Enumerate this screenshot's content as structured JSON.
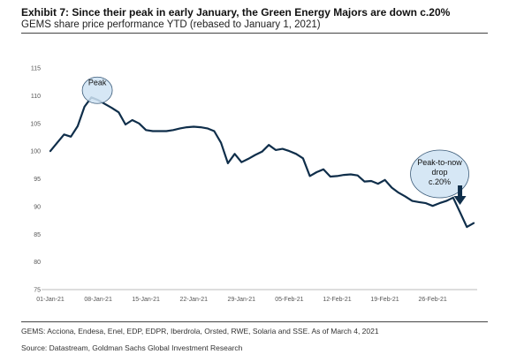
{
  "header": {
    "title": "Exhibit 7: Since their peak in early January, the Green Energy Majors are down c.20%",
    "subtitle": "GEMS share price performance YTD (rebased to January 1, 2021)"
  },
  "footer": {
    "note": "GEMS: Acciona, Endesa, Enel, EDP, EDPR, Iberdrola, Orsted, RWE, Solaria and SSE. As of March 4, 2021",
    "source": "Source: Datastream, Goldman Sachs Global Investment Research"
  },
  "colors": {
    "line": "#0f2e4a",
    "bubble_fill": "#cfe3f3",
    "bubble_stroke": "#3a5a78",
    "arrow": "#0f2e4a"
  },
  "chart_data": {
    "type": "line",
    "title": "",
    "xlabel": "",
    "ylabel": "",
    "ylim": [
      75,
      115
    ],
    "yticks": [
      75,
      80,
      85,
      90,
      95,
      100,
      105,
      110,
      115
    ],
    "grid": false,
    "legend": "none",
    "xtick_labels": [
      "01-Jan-21",
      "08-Jan-21",
      "15-Jan-21",
      "22-Jan-21",
      "29-Jan-21",
      "05-Feb-21",
      "12-Feb-21",
      "19-Feb-21",
      "26-Feb-21"
    ],
    "x_start": "2021-01-01",
    "x_end": "2021-03-04",
    "series": [
      {
        "x": [
          "2021-01-01",
          "2021-01-02",
          "2021-01-03",
          "2021-01-04",
          "2021-01-05",
          "2021-01-06",
          "2021-01-07",
          "2021-01-08",
          "2021-01-09",
          "2021-01-10",
          "2021-01-11",
          "2021-01-12",
          "2021-01-13",
          "2021-01-14",
          "2021-01-15",
          "2021-01-16",
          "2021-01-17",
          "2021-01-18",
          "2021-01-19",
          "2021-01-20",
          "2021-01-21",
          "2021-01-22",
          "2021-01-23",
          "2021-01-24",
          "2021-01-25",
          "2021-01-26",
          "2021-01-27",
          "2021-01-28",
          "2021-01-29",
          "2021-01-30",
          "2021-01-31",
          "2021-02-01",
          "2021-02-02",
          "2021-02-03",
          "2021-02-04",
          "2021-02-05",
          "2021-02-06",
          "2021-02-07",
          "2021-02-08",
          "2021-02-09",
          "2021-02-10",
          "2021-02-11",
          "2021-02-12",
          "2021-02-13",
          "2021-02-14",
          "2021-02-15",
          "2021-02-16",
          "2021-02-17",
          "2021-02-18",
          "2021-02-19",
          "2021-02-20",
          "2021-02-21",
          "2021-02-22",
          "2021-02-23",
          "2021-02-24",
          "2021-02-25",
          "2021-02-26",
          "2021-02-27",
          "2021-02-28",
          "2021-03-01",
          "2021-03-02",
          "2021-03-03",
          "2021-03-04"
        ],
        "values": [
          100.0,
          101.5,
          103.0,
          102.6,
          104.5,
          108.0,
          109.7,
          109.2,
          108.5,
          107.8,
          107.0,
          104.8,
          105.6,
          105.0,
          103.8,
          103.6,
          103.6,
          103.6,
          103.8,
          104.1,
          104.3,
          104.4,
          104.3,
          104.1,
          103.6,
          101.5,
          97.8,
          99.5,
          98.0,
          98.6,
          99.3,
          99.9,
          101.1,
          100.2,
          100.4,
          100.0,
          99.5,
          98.7,
          95.5,
          96.2,
          96.7,
          95.4,
          95.5,
          95.7,
          95.8,
          95.6,
          94.5,
          94.6,
          94.1,
          94.8,
          93.4,
          92.5,
          91.8,
          91.0,
          90.8,
          90.6,
          90.1,
          90.6,
          91.0,
          91.6,
          89.0,
          86.3,
          87.0
        ]
      }
    ],
    "annotations": [
      {
        "text": "Peak",
        "date": "2021-01-08",
        "value": 109.7
      },
      {
        "text_lines": [
          "Peak-to-now",
          "drop",
          "c.20%"
        ],
        "date": "2021-03-02",
        "value": 86.3
      }
    ]
  }
}
